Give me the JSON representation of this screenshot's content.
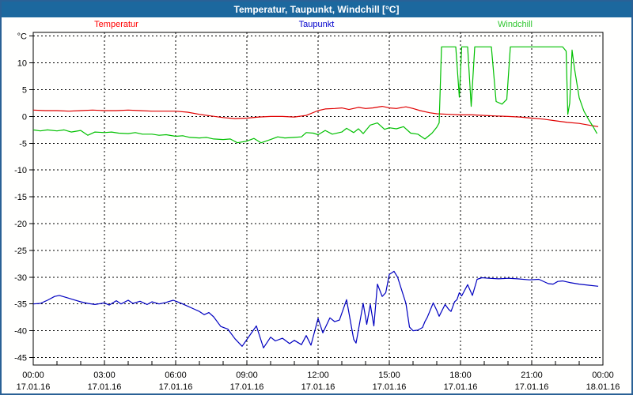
{
  "window": {
    "title": "Temperatur, Taupunkt, Windchill [°C]"
  },
  "colors": {
    "titlebar_bg": "#1c689e",
    "frame_border": "#2a6196",
    "chart_bg": "#fffffe",
    "grid": "#000000",
    "temperatur": "#e00000",
    "taupunkt": "#0000c0",
    "windchill": "#00c000"
  },
  "chart_data": {
    "type": "line",
    "title": "Temperatur, Taupunkt, Windchill [°C]",
    "legend_position": "top",
    "grid": "dashed",
    "x_axis": {
      "unit": "time",
      "xlim": [
        0,
        24
      ],
      "major_tick_hours": 3,
      "minor_tick_hours": 1,
      "ticks": [
        {
          "h": 0,
          "time": "00:00",
          "date": "17.01.16"
        },
        {
          "h": 3,
          "time": "03:00",
          "date": "17.01.16"
        },
        {
          "h": 6,
          "time": "06:00",
          "date": "17.01.16"
        },
        {
          "h": 9,
          "time": "09:00",
          "date": "17.01.16"
        },
        {
          "h": 12,
          "time": "12:00",
          "date": "17.01.16"
        },
        {
          "h": 15,
          "time": "15:00",
          "date": "17.01.16"
        },
        {
          "h": 18,
          "time": "18:00",
          "date": "17.01.16"
        },
        {
          "h": 21,
          "time": "21:00",
          "date": "17.01.16"
        },
        {
          "h": 24,
          "time": "00:00",
          "date": "18.01.16"
        }
      ]
    },
    "y_axis": {
      "unit": "°C",
      "ylim": [
        -46.4,
        15.7
      ],
      "ticks": [
        {
          "v": 15,
          "label": "°C"
        },
        {
          "v": 10,
          "label": "10"
        },
        {
          "v": 5,
          "label": "5"
        },
        {
          "v": 0,
          "label": "0"
        },
        {
          "v": -5,
          "label": "-5"
        },
        {
          "v": -10,
          "label": "-10"
        },
        {
          "v": -15,
          "label": "-15"
        },
        {
          "v": -20,
          "label": "-20"
        },
        {
          "v": -25,
          "label": "-25"
        },
        {
          "v": -30,
          "label": "-30"
        },
        {
          "v": -35,
          "label": "-35"
        },
        {
          "v": -40,
          "label": "-40"
        },
        {
          "v": -45,
          "label": "-45"
        }
      ]
    },
    "series": [
      {
        "name": "Temperatur",
        "color": "#e00000",
        "label_color": "#ff0000",
        "points": [
          [
            0,
            1.2
          ],
          [
            0.5,
            1.1
          ],
          [
            1,
            1.1
          ],
          [
            1.5,
            1.0
          ],
          [
            2,
            1.1
          ],
          [
            2.5,
            1.2
          ],
          [
            3,
            1.1
          ],
          [
            3.5,
            1.1
          ],
          [
            4,
            1.2
          ],
          [
            4.5,
            1.1
          ],
          [
            5,
            1.0
          ],
          [
            5.5,
            1.0
          ],
          [
            6,
            1.0
          ],
          [
            6.5,
            0.8
          ],
          [
            7,
            0.4
          ],
          [
            7.5,
            0.1
          ],
          [
            8,
            -0.2
          ],
          [
            8.5,
            -0.4
          ],
          [
            9,
            -0.3
          ],
          [
            9.5,
            -0.1
          ],
          [
            10,
            0.0
          ],
          [
            10.5,
            0.0
          ],
          [
            11,
            -0.1
          ],
          [
            11.5,
            0.2
          ],
          [
            12,
            1.1
          ],
          [
            12.3,
            1.4
          ],
          [
            12.7,
            1.5
          ],
          [
            13,
            1.6
          ],
          [
            13.3,
            1.3
          ],
          [
            13.7,
            1.7
          ],
          [
            14,
            1.5
          ],
          [
            14.3,
            1.6
          ],
          [
            14.7,
            1.9
          ],
          [
            15,
            1.6
          ],
          [
            15.3,
            1.5
          ],
          [
            15.7,
            1.8
          ],
          [
            16,
            1.5
          ],
          [
            16.3,
            1.1
          ],
          [
            16.7,
            0.7
          ],
          [
            17,
            0.5
          ],
          [
            17.5,
            0.4
          ],
          [
            18,
            0.3
          ],
          [
            18.5,
            0.3
          ],
          [
            19,
            0.2
          ],
          [
            19.5,
            0.1
          ],
          [
            20,
            0.0
          ],
          [
            20.5,
            -0.1
          ],
          [
            21,
            -0.3
          ],
          [
            21.5,
            -0.5
          ],
          [
            22,
            -0.8
          ],
          [
            22.5,
            -1.1
          ],
          [
            23,
            -1.3
          ],
          [
            23.4,
            -1.6
          ],
          [
            23.8,
            -1.9
          ]
        ]
      },
      {
        "name": "Taupunkt",
        "color": "#0000c0",
        "label_color": "#0000cc",
        "points": [
          [
            0,
            -35.0
          ],
          [
            0.3,
            -34.9
          ],
          [
            0.6,
            -34.3
          ],
          [
            0.9,
            -33.6
          ],
          [
            1.1,
            -33.4
          ],
          [
            1.4,
            -33.8
          ],
          [
            1.7,
            -34.2
          ],
          [
            2,
            -34.6
          ],
          [
            2.3,
            -34.9
          ],
          [
            2.6,
            -35.1
          ],
          [
            3,
            -34.8
          ],
          [
            3.2,
            -35.2
          ],
          [
            3.5,
            -34.4
          ],
          [
            3.7,
            -35.0
          ],
          [
            4,
            -34.3
          ],
          [
            4.2,
            -34.9
          ],
          [
            4.5,
            -34.5
          ],
          [
            4.8,
            -35.1
          ],
          [
            5,
            -34.6
          ],
          [
            5.3,
            -35.0
          ],
          [
            5.6,
            -34.7
          ],
          [
            5.9,
            -34.3
          ],
          [
            6.2,
            -34.8
          ],
          [
            6.5,
            -35.4
          ],
          [
            6.8,
            -36.0
          ],
          [
            7,
            -36.4
          ],
          [
            7.2,
            -37.0
          ],
          [
            7.4,
            -36.6
          ],
          [
            7.6,
            -37.4
          ],
          [
            7.9,
            -39.2
          ],
          [
            8.2,
            -39.7
          ],
          [
            8.5,
            -41.5
          ],
          [
            8.8,
            -42.9
          ],
          [
            9.1,
            -41.0
          ],
          [
            9.4,
            -39.1
          ],
          [
            9.7,
            -43.2
          ],
          [
            10,
            -41.2
          ],
          [
            10.2,
            -41.9
          ],
          [
            10.5,
            -41.4
          ],
          [
            10.8,
            -42.4
          ],
          [
            11,
            -41.8
          ],
          [
            11.3,
            -42.6
          ],
          [
            11.5,
            -40.9
          ],
          [
            11.7,
            -42.7
          ],
          [
            12,
            -37.7
          ],
          [
            12.2,
            -40.4
          ],
          [
            12.5,
            -37.6
          ],
          [
            12.7,
            -38.3
          ],
          [
            12.9,
            -38.0
          ],
          [
            13.2,
            -34.2
          ],
          [
            13.5,
            -41.6
          ],
          [
            13.6,
            -42.3
          ],
          [
            13.9,
            -34.9
          ],
          [
            14.05,
            -38.8
          ],
          [
            14.2,
            -35.1
          ],
          [
            14.35,
            -39.1
          ],
          [
            14.5,
            -31.3
          ],
          [
            14.7,
            -33.6
          ],
          [
            14.85,
            -32.9
          ],
          [
            15.0,
            -29.5
          ],
          [
            15.2,
            -28.9
          ],
          [
            15.35,
            -30.0
          ],
          [
            15.5,
            -32.1
          ],
          [
            15.7,
            -34.9
          ],
          [
            15.85,
            -39.3
          ],
          [
            16.0,
            -40.0
          ],
          [
            16.2,
            -39.9
          ],
          [
            16.4,
            -39.4
          ],
          [
            16.5,
            -38.3
          ],
          [
            16.6,
            -37.5
          ],
          [
            16.85,
            -34.8
          ],
          [
            17.0,
            -36.2
          ],
          [
            17.1,
            -37.3
          ],
          [
            17.35,
            -35.1
          ],
          [
            17.5,
            -36.0
          ],
          [
            17.6,
            -36.4
          ],
          [
            17.75,
            -34.6
          ],
          [
            17.85,
            -34.2
          ],
          [
            17.95,
            -32.9
          ],
          [
            18.05,
            -33.5
          ],
          [
            18.3,
            -31.4
          ],
          [
            18.5,
            -33.4
          ],
          [
            18.7,
            -30.4
          ],
          [
            18.9,
            -30.1
          ],
          [
            19.2,
            -30.2
          ],
          [
            19.6,
            -30.3
          ],
          [
            20.0,
            -30.2
          ],
          [
            20.4,
            -30.3
          ],
          [
            20.9,
            -30.5
          ],
          [
            21.3,
            -30.4
          ],
          [
            21.7,
            -31.2
          ],
          [
            21.9,
            -31.3
          ],
          [
            22.1,
            -30.8
          ],
          [
            22.3,
            -30.7
          ],
          [
            22.6,
            -31.0
          ],
          [
            23.0,
            -31.3
          ],
          [
            23.4,
            -31.5
          ],
          [
            23.8,
            -31.7
          ]
        ]
      },
      {
        "name": "Windchill",
        "color": "#00c000",
        "label_color": "#2fc62f",
        "points": [
          [
            0,
            -2.5
          ],
          [
            0.3,
            -2.7
          ],
          [
            0.6,
            -2.5
          ],
          [
            1,
            -2.7
          ],
          [
            1.3,
            -2.5
          ],
          [
            1.6,
            -2.9
          ],
          [
            2,
            -2.6
          ],
          [
            2.3,
            -3.5
          ],
          [
            2.6,
            -2.9
          ],
          [
            3,
            -3.0
          ],
          [
            3.3,
            -2.9
          ],
          [
            3.6,
            -3.1
          ],
          [
            4,
            -3.2
          ],
          [
            4.3,
            -3.0
          ],
          [
            4.6,
            -3.3
          ],
          [
            5,
            -3.3
          ],
          [
            5.3,
            -3.5
          ],
          [
            5.6,
            -3.4
          ],
          [
            6,
            -3.7
          ],
          [
            6.3,
            -3.6
          ],
          [
            6.6,
            -3.9
          ],
          [
            7,
            -4.0
          ],
          [
            7.3,
            -3.9
          ],
          [
            7.6,
            -4.2
          ],
          [
            8,
            -4.3
          ],
          [
            8.3,
            -4.2
          ],
          [
            8.6,
            -4.9
          ],
          [
            9,
            -4.6
          ],
          [
            9.3,
            -4.1
          ],
          [
            9.6,
            -4.9
          ],
          [
            10,
            -4.3
          ],
          [
            10.3,
            -3.8
          ],
          [
            10.6,
            -4.0
          ],
          [
            11,
            -3.9
          ],
          [
            11.3,
            -3.8
          ],
          [
            11.5,
            -3.0
          ],
          [
            11.8,
            -3.1
          ],
          [
            12,
            -3.4
          ],
          [
            12.3,
            -2.6
          ],
          [
            12.6,
            -3.3
          ],
          [
            13,
            -2.9
          ],
          [
            13.2,
            -2.2
          ],
          [
            13.5,
            -3.0
          ],
          [
            13.7,
            -2.3
          ],
          [
            13.9,
            -3.2
          ],
          [
            14.2,
            -1.6
          ],
          [
            14.5,
            -1.2
          ],
          [
            14.8,
            -2.4
          ],
          [
            15,
            -2.1
          ],
          [
            15.3,
            -2.3
          ],
          [
            15.6,
            -1.9
          ],
          [
            15.9,
            -3.1
          ],
          [
            16.2,
            -3.3
          ],
          [
            16.5,
            -4.2
          ],
          [
            16.8,
            -3.1
          ],
          [
            17,
            -2.0
          ],
          [
            17.1,
            -1.2
          ],
          [
            17.2,
            13
          ],
          [
            17.8,
            13
          ],
          [
            17.95,
            3.6
          ],
          [
            18.05,
            13
          ],
          [
            18.3,
            13
          ],
          [
            18.45,
            1.9
          ],
          [
            18.6,
            13
          ],
          [
            19.3,
            13
          ],
          [
            19.5,
            2.8
          ],
          [
            19.75,
            2.3
          ],
          [
            19.95,
            3.2
          ],
          [
            20.1,
            13
          ],
          [
            22.3,
            13
          ],
          [
            22.45,
            12.2
          ],
          [
            22.52,
            0.4
          ],
          [
            22.6,
            2.5
          ],
          [
            22.7,
            12.4
          ],
          [
            22.8,
            9.0
          ],
          [
            23.0,
            3.5
          ],
          [
            23.2,
            1.0
          ],
          [
            23.4,
            -0.6
          ],
          [
            23.6,
            -2.0
          ],
          [
            23.75,
            -3.2
          ]
        ]
      }
    ]
  }
}
